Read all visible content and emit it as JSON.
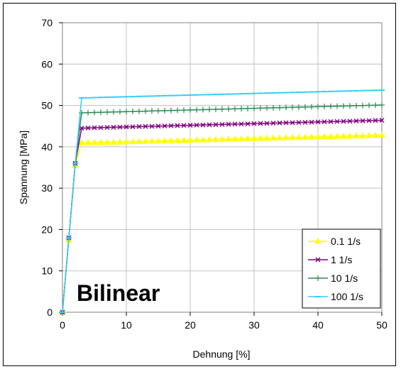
{
  "chart_data": {
    "type": "line",
    "title": "",
    "xlabel": "Dehnung [%]",
    "ylabel": "Spannung [MPa]",
    "xlim": [
      0,
      50
    ],
    "ylim": [
      0,
      70
    ],
    "xticks": [
      0,
      10,
      20,
      30,
      40,
      50
    ],
    "yticks": [
      0,
      10,
      20,
      30,
      40,
      50,
      60,
      70
    ],
    "grid": true,
    "legend_position": "bottom-right",
    "annotation": "Bilinear",
    "series": [
      {
        "name": "0.1 1/s",
        "color": "#ffff00",
        "marker": "triangle",
        "x": [
          0,
          1,
          2,
          3,
          5,
          10,
          15,
          20,
          25,
          30,
          35,
          40,
          45,
          50
        ],
        "y": [
          0,
          17.5,
          35.5,
          41.0,
          41.0,
          41.2,
          41.4,
          41.6,
          41.8,
          42.0,
          42.2,
          42.4,
          42.6,
          42.8
        ]
      },
      {
        "name": "1 1/s",
        "color": "#800080",
        "marker": "x",
        "x": [
          0,
          1,
          2,
          3,
          5,
          10,
          15,
          20,
          25,
          30,
          35,
          40,
          45,
          50
        ],
        "y": [
          0,
          18.0,
          36.0,
          44.5,
          44.6,
          44.8,
          45.0,
          45.2,
          45.4,
          45.6,
          45.8,
          46.0,
          46.2,
          46.4
        ]
      },
      {
        "name": "10 1/s",
        "color": "#2e8b57",
        "marker": "plus",
        "x": [
          0,
          1,
          2,
          3,
          5,
          10,
          15,
          20,
          25,
          30,
          35,
          40,
          45,
          50
        ],
        "y": [
          0,
          18.0,
          36.0,
          48.2,
          48.3,
          48.5,
          48.7,
          48.9,
          49.1,
          49.3,
          49.5,
          49.7,
          49.9,
          50.1
        ]
      },
      {
        "name": "100 1/s",
        "color": "#33ccff",
        "marker": "dash",
        "x": [
          0,
          1,
          2,
          3,
          5,
          10,
          15,
          20,
          25,
          30,
          35,
          40,
          45,
          50
        ],
        "y": [
          0,
          18.0,
          36.0,
          51.8,
          51.9,
          52.1,
          52.3,
          52.5,
          52.7,
          52.9,
          53.1,
          53.3,
          53.5,
          53.7
        ]
      }
    ]
  }
}
